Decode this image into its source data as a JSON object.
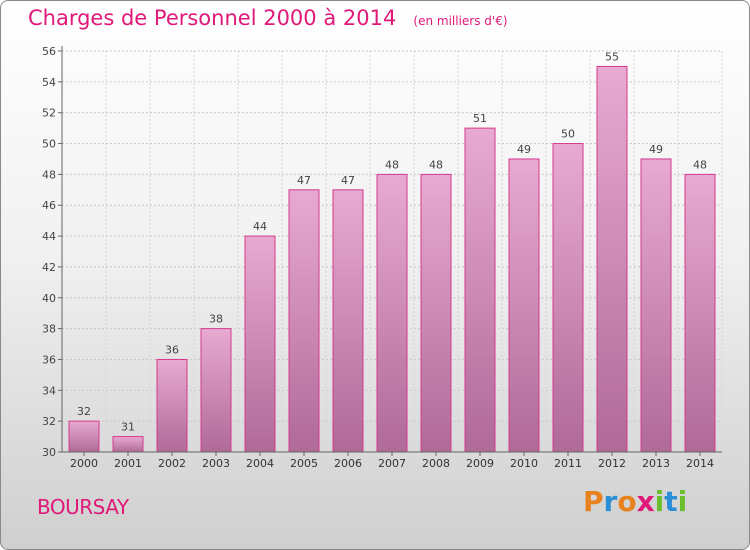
{
  "header": {
    "title": "Charges de Personnel 2000 à 2014",
    "unit": "(en milliers d'€)"
  },
  "footer": {
    "city": "BOURSAY",
    "brand_letters": [
      "P",
      "r",
      "o",
      "x",
      "i",
      "t",
      "i"
    ],
    "brand_colors": [
      "#e8821e",
      "#2a8fd6",
      "#e8821e",
      "#e01878",
      "#6abf2e",
      "#2a8fd6",
      "#6abf2e"
    ]
  },
  "chart_data": {
    "type": "bar",
    "categories": [
      "2000",
      "2001",
      "2002",
      "2003",
      "2004",
      "2005",
      "2006",
      "2007",
      "2008",
      "2009",
      "2010",
      "2011",
      "2012",
      "2013",
      "2014"
    ],
    "values": [
      32,
      31,
      36,
      38,
      44,
      47,
      47,
      48,
      48,
      51,
      49,
      50,
      55,
      49,
      48
    ],
    "ylim": [
      30,
      56
    ],
    "yticks": [
      30,
      32,
      34,
      36,
      38,
      40,
      42,
      44,
      46,
      48,
      50,
      52,
      54,
      56
    ],
    "grid": true,
    "bar_color_top": "#e8aad0",
    "bar_color_bottom": "#b06a98",
    "bar_edge_color": "#d4398f"
  }
}
